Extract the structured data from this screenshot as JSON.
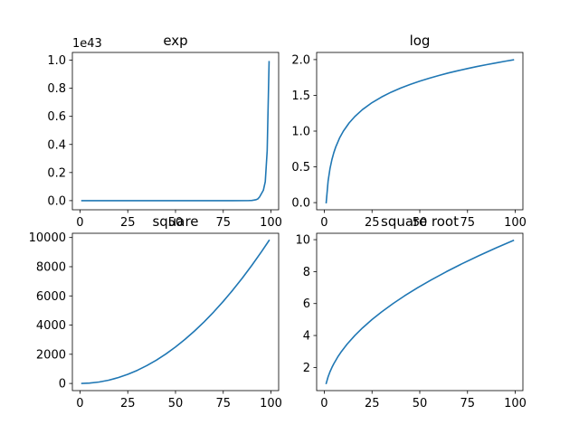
{
  "chart_data": [
    {
      "type": "line",
      "title": "exp",
      "xlabel": "",
      "ylabel": "",
      "y_offset_label": "1e43",
      "xlim": [
        -4,
        104
      ],
      "ylim": [
        -0.065,
        1.055
      ],
      "xticks": [
        0,
        25,
        50,
        75,
        100
      ],
      "xtick_labels": [
        "0",
        "25",
        "50",
        "75",
        "100"
      ],
      "yticks": [
        0.0,
        0.2,
        0.4,
        0.6,
        0.8,
        1.0
      ],
      "ytick_labels": [
        "0.0",
        "0.2",
        "0.4",
        "0.6",
        "0.8",
        "1.0"
      ],
      "grid": false,
      "color": "#1f77b4",
      "series": [
        {
          "x": [
            1,
            10,
            20,
            30,
            40,
            50,
            60,
            70,
            80,
            88,
            90,
            91,
            92,
            93,
            94,
            95,
            96,
            97,
            98,
            99
          ],
          "y": [
            0,
            0,
            0,
            0,
            0,
            0,
            0,
            0,
            0,
            0.0002,
            0.0016,
            0.0036,
            0.0061,
            0.0113,
            0.026,
            0.05,
            0.074,
            0.135,
            0.355,
            0.989
          ]
        }
      ]
    },
    {
      "type": "line",
      "title": "log",
      "xlabel": "",
      "ylabel": "",
      "xlim": [
        -4,
        104
      ],
      "ylim": [
        -0.1,
        2.1
      ],
      "xticks": [
        0,
        25,
        50,
        75,
        100
      ],
      "xtick_labels": [
        "0",
        "25",
        "50",
        "75",
        "100"
      ],
      "yticks": [
        0.0,
        0.5,
        1.0,
        1.5,
        2.0
      ],
      "ytick_labels": [
        "0.0",
        "0.5",
        "1.0",
        "1.5",
        "2.0"
      ],
      "grid": false,
      "color": "#1f77b4",
      "series": [
        {
          "x": [
            1,
            2,
            3,
            4,
            5,
            6,
            8,
            10,
            13,
            16,
            20,
            25,
            30,
            35,
            40,
            45,
            50,
            55,
            60,
            65,
            70,
            75,
            80,
            85,
            90,
            95,
            99
          ],
          "y": [
            0,
            0.301,
            0.477,
            0.602,
            0.699,
            0.778,
            0.903,
            1.0,
            1.114,
            1.204,
            1.301,
            1.398,
            1.477,
            1.544,
            1.602,
            1.653,
            1.699,
            1.74,
            1.778,
            1.813,
            1.845,
            1.875,
            1.903,
            1.929,
            1.954,
            1.978,
            1.996
          ]
        }
      ]
    },
    {
      "type": "line",
      "title": "square",
      "xlabel": "",
      "ylabel": "",
      "xlim": [
        -4,
        104
      ],
      "ylim": [
        -489,
        10291
      ],
      "xticks": [
        0,
        25,
        50,
        75,
        100
      ],
      "xtick_labels": [
        "0",
        "25",
        "50",
        "75",
        "100"
      ],
      "yticks": [
        0,
        2000,
        4000,
        6000,
        8000,
        10000
      ],
      "ytick_labels": [
        "0",
        "2000",
        "4000",
        "6000",
        "8000",
        "10000"
      ],
      "grid": false,
      "color": "#1f77b4",
      "series": [
        {
          "x": [
            1,
            5,
            10,
            15,
            20,
            25,
            30,
            35,
            40,
            45,
            50,
            55,
            60,
            65,
            70,
            75,
            80,
            85,
            90,
            95,
            99
          ],
          "y": [
            1,
            25,
            100,
            225,
            400,
            625,
            900,
            1225,
            1600,
            2025,
            2500,
            3025,
            3600,
            4225,
            4900,
            5625,
            6400,
            7225,
            8100,
            9025,
            9801
          ]
        }
      ]
    },
    {
      "type": "line",
      "title": "square root",
      "xlabel": "",
      "ylabel": "",
      "xlim": [
        -4,
        104
      ],
      "ylim": [
        0.55,
        10.4
      ],
      "xticks": [
        0,
        25,
        50,
        75,
        100
      ],
      "xtick_labels": [
        "0",
        "25",
        "50",
        "75",
        "100"
      ],
      "yticks": [
        2,
        4,
        6,
        8,
        10
      ],
      "ytick_labels": [
        "2",
        "4",
        "6",
        "8",
        "10"
      ],
      "grid": false,
      "color": "#1f77b4",
      "series": [
        {
          "x": [
            1,
            2,
            3,
            4,
            5,
            7,
            9,
            12,
            16,
            20,
            25,
            30,
            36,
            42,
            49,
            56,
            64,
            72,
            81,
            90,
            99
          ],
          "y": [
            1,
            1.414,
            1.732,
            2,
            2.236,
            2.646,
            3,
            3.464,
            4,
            4.472,
            5,
            5.477,
            6,
            6.481,
            7,
            7.483,
            8,
            8.485,
            9,
            9.487,
            9.95
          ]
        }
      ]
    }
  ]
}
